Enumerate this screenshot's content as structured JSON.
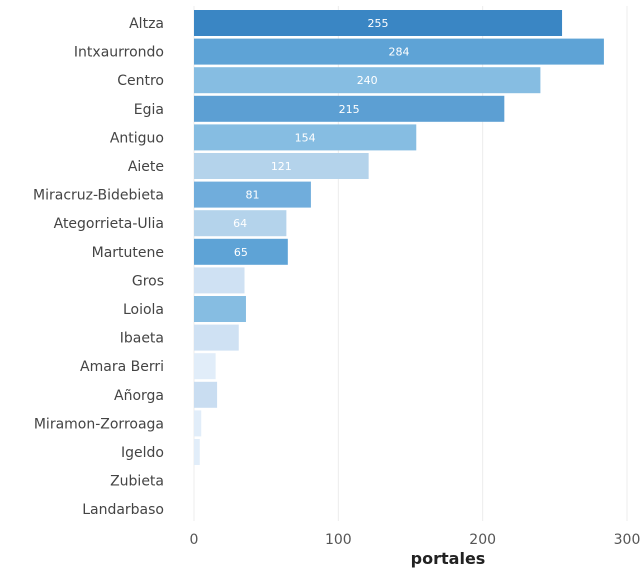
{
  "chart_data": {
    "type": "bar",
    "orientation": "horizontal",
    "categories": [
      "Altza",
      "Intxaurrondo",
      "Centro",
      "Egia",
      "Antiguo",
      "Aiete",
      "Miracruz-Bidebieta",
      "Ategorrieta-Ulia",
      "Martutene",
      "Gros",
      "Loiola",
      "Ibaeta",
      "Amara Berri",
      "Añorga",
      "Miramon-Zorroaga",
      "Igeldo",
      "Zubieta",
      "Landarbaso"
    ],
    "values": [
      255,
      284,
      240,
      215,
      154,
      121,
      81,
      64,
      65,
      35,
      36,
      31,
      15,
      16,
      5,
      4,
      0,
      0
    ],
    "value_labels": [
      "255",
      "284",
      "240",
      "215",
      "154",
      "121",
      "81",
      "64",
      "65",
      "",
      "",
      "",
      "",
      "",
      "",
      "",
      "",
      ""
    ],
    "colors": [
      "#3a86c4",
      "#5ea3d6",
      "#86bde2",
      "#5c9fd3",
      "#86bde2",
      "#b4d3eb",
      "#70addc",
      "#b4d3eb",
      "#5ea3d6",
      "#cfe1f3",
      "#86bde2",
      "#cfe1f3",
      "#e1edf9",
      "#c9ddf1",
      "#e1edf9",
      "#e1edf9",
      "#e1edf9",
      "#e1edf9"
    ],
    "xlabel": "portales",
    "ylabel": "",
    "title": "",
    "xlim": [
      0,
      300
    ],
    "xticks": [
      0,
      100,
      200,
      300
    ],
    "grid": "vertical",
    "legend": "none"
  }
}
